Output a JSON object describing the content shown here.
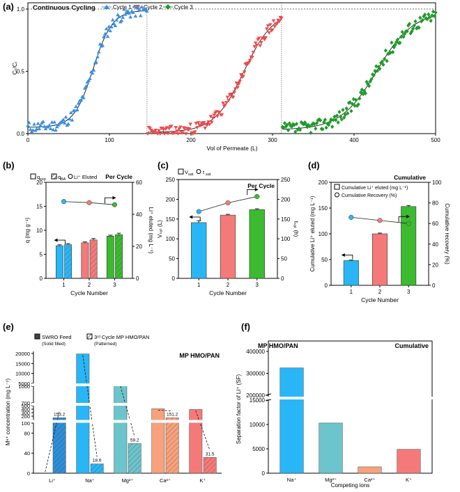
{
  "panel_labels": [
    "(a)",
    "(b)",
    "(c)",
    "(d)",
    "(e)",
    "(f)"
  ],
  "chart_data": [
    {
      "id": "a",
      "type": "scatter",
      "title": "Continuous Cycling",
      "xlabel": "Vol of Permeate (L)",
      "ylabel": "Cₜ/Cᵢ",
      "xlim": [
        0,
        500
      ],
      "ylim": [
        0,
        1.05
      ],
      "xticks": [
        0,
        100,
        200,
        300,
        400,
        500
      ],
      "yticks": [
        0.0,
        0.5,
        1.0
      ],
      "ytick_labels": [
        "0.0",
        "0.5",
        "1.0"
      ],
      "legend": [
        "Cycle 1",
        "Cycle 2",
        "Cycle 3"
      ],
      "colors": [
        "#3a8fe0",
        "#ee4b4b",
        "#1f9a2a"
      ],
      "series": [
        {
          "name": "Cycle 1",
          "x_range": [
            0,
            146
          ],
          "midpoint": 80,
          "slope": 0.085,
          "low": 0.05,
          "high": 0.99,
          "noise": 0.045,
          "count": 95
        },
        {
          "name": "Cycle 2",
          "x_range": [
            147,
            311
          ],
          "midpoint": 265,
          "slope": 0.055,
          "low": 0.01,
          "high": 0.99,
          "noise": 0.045,
          "count": 120
        },
        {
          "name": "Cycle 3",
          "x_range": [
            312,
            500
          ],
          "midpoint": 428,
          "slope": 0.045,
          "low": 0.03,
          "high": 0.98,
          "noise": 0.05,
          "count": 130
        }
      ],
      "dividers_x": [
        146,
        311
      ],
      "reference_y": 1.0
    },
    {
      "id": "b",
      "type": "bar",
      "categories": [
        "1",
        "2",
        "3"
      ],
      "xlabel": "Cycle Number",
      "ylabel": "q (mg g⁻¹)",
      "ylabel2": "Li⁺ eluted (mg L⁻¹)",
      "ylim": [
        0,
        20
      ],
      "y2lim": [
        0,
        60
      ],
      "yticks": [
        0,
        5,
        10,
        15,
        20
      ],
      "y2ticks": [
        0,
        20,
        40,
        60
      ],
      "corner_label": "Per Cycle",
      "legend": [
        "q",
        "exp",
        "q",
        "BA",
        "Li⁺ Eluted"
      ],
      "series": [
        {
          "name": "q_exp",
          "values": [
            6.8,
            7.4,
            8.8
          ],
          "errors": [
            0.2,
            0.2,
            0.2
          ]
        },
        {
          "name": "q_BA",
          "values": [
            7.0,
            8.0,
            9.1
          ],
          "errors": [
            0.25,
            0.3,
            0.3
          ]
        },
        {
          "name": "Li+ eluted",
          "values": [
            48.0,
            47.3,
            46.0
          ]
        }
      ],
      "colors": [
        "#29b6f6",
        "#f47a7a",
        "#3cbb30"
      ]
    },
    {
      "id": "c",
      "type": "bar",
      "categories": [
        "1",
        "2",
        "3"
      ],
      "xlabel": "Cycle Number",
      "ylabel": "Vₛₐₜ (L)",
      "ylabel2": "tₛₐₜ (h)",
      "ylim": [
        0,
        250
      ],
      "y2lim": [
        0,
        250
      ],
      "yticks": [
        0,
        50,
        100,
        150,
        200,
        250
      ],
      "y2ticks": [
        0,
        50,
        100,
        150,
        200,
        250
      ],
      "corner_label": "Per Cycle",
      "legend": [
        "V",
        "sat",
        "t",
        "sat"
      ],
      "series": [
        {
          "name": "V_sat",
          "values": [
            141,
            160,
            174
          ],
          "errors": [
            5,
            2,
            2
          ]
        },
        {
          "name": "t_sat",
          "values": [
            169,
            191,
            207
          ]
        }
      ],
      "colors": [
        "#29b6f6",
        "#f47a7a",
        "#3cbb30"
      ]
    },
    {
      "id": "d",
      "type": "bar",
      "categories": [
        "1",
        "2",
        "3"
      ],
      "xlabel": "Cycle Number",
      "ylabel": "Cumulative Li⁺ eluted (mg L⁻¹)",
      "ylabel2": "Cumulative recovery (%)",
      "ylim": [
        0,
        200
      ],
      "y2lim": [
        0,
        100
      ],
      "yticks": [
        0,
        50,
        100,
        150,
        200
      ],
      "y2ticks": [
        0,
        20,
        40,
        60,
        80,
        100
      ],
      "corner_label": "Cumulative",
      "legend": [
        "Cumulative Li⁺ eluted (mg L⁻¹)",
        "Cumulative Recovery (%)"
      ],
      "series": [
        {
          "name": "Cumulative Li+ eluted",
          "values": [
            48,
            100,
            153
          ],
          "errors": [
            1,
            1.5,
            2
          ]
        },
        {
          "name": "Cumulative Recovery",
          "values": [
            66,
            63,
            60
          ]
        }
      ],
      "colors": [
        "#29b6f6",
        "#f47a7a",
        "#3cbb30"
      ]
    },
    {
      "id": "e",
      "type": "bar",
      "title": "MP HMO/PAN",
      "categories": [
        "Li⁺",
        "Na⁺",
        "Mg²⁺",
        "Ca²⁺",
        "K⁺"
      ],
      "xlabel": "",
      "ylabel": "Mⁿ⁺ concentration (mg L⁻¹)",
      "broken_axis": true,
      "yticks": [
        0,
        40,
        80,
        100,
        200,
        300,
        400,
        500,
        700,
        1000,
        5000,
        10000,
        15000,
        20000
      ],
      "legend": [
        "SWRO Feed",
        "(Solid filled)",
        "3ʳᵈ Cycle MP HMO/PAN",
        "(Patterned)"
      ],
      "series": [
        {
          "name": "SWRO Feed",
          "values": [
            0.2,
            19800,
            1290,
            412,
            392
          ]
        },
        {
          "name": "3rd Cycle MP HMO/PAN",
          "values": [
            153.2,
            18.6,
            59.2,
            151.2,
            31.5
          ]
        }
      ],
      "data_labels": [
        "153.2",
        "18.6",
        "59.2",
        "151.2",
        "31.5"
      ],
      "colors": [
        "#2f8fd8",
        "#29b6f6",
        "#6cc4cc",
        "#f7a27c",
        "#f47a7a"
      ]
    },
    {
      "id": "f",
      "type": "bar",
      "title": "MP HMO/PAN",
      "corner_label": "Cumulative",
      "categories": [
        "Na⁺",
        "Mg²⁺",
        "Ca²⁺",
        "K⁺"
      ],
      "xlabel": "Competing ions",
      "ylabel": "Separation factor of Li⁺ (SF)",
      "broken_axis": true,
      "yticks": [
        0,
        5000,
        10000,
        15000,
        200000,
        300000,
        400000
      ],
      "values": [
        325000,
        10300,
        1300,
        4900
      ],
      "colors": [
        "#29b6f6",
        "#6cc4cc",
        "#f7a27c",
        "#f47a7a"
      ]
    }
  ]
}
